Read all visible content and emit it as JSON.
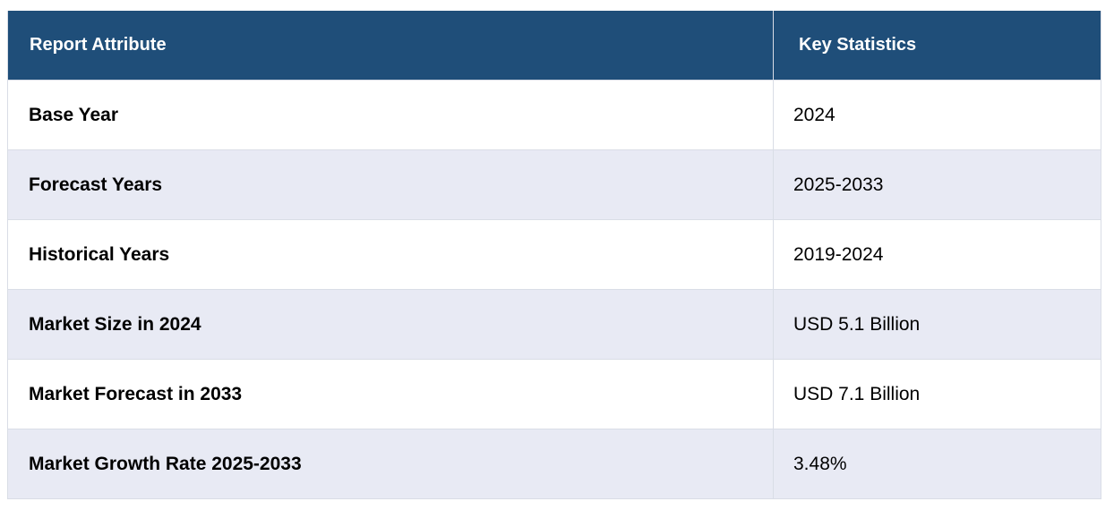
{
  "header": {
    "col1": "Report Attribute",
    "col2": "Key Statistics"
  },
  "rows": [
    {
      "attribute": "Base Year",
      "value": "2024"
    },
    {
      "attribute": "Forecast Years",
      "value": "2025-2033"
    },
    {
      "attribute": "Historical Years",
      "value": "2019-2024"
    },
    {
      "attribute": "Market Size in 2024",
      "value": "USD 5.1 Billion"
    },
    {
      "attribute": "Market Forecast in 2033",
      "value": "USD 7.1 Billion"
    },
    {
      "attribute": "Market Growth Rate 2025-2033",
      "value": "3.48%"
    }
  ],
  "colors": {
    "header_bg": "#1f4e79",
    "alt_row_bg": "#e8eaf4"
  }
}
